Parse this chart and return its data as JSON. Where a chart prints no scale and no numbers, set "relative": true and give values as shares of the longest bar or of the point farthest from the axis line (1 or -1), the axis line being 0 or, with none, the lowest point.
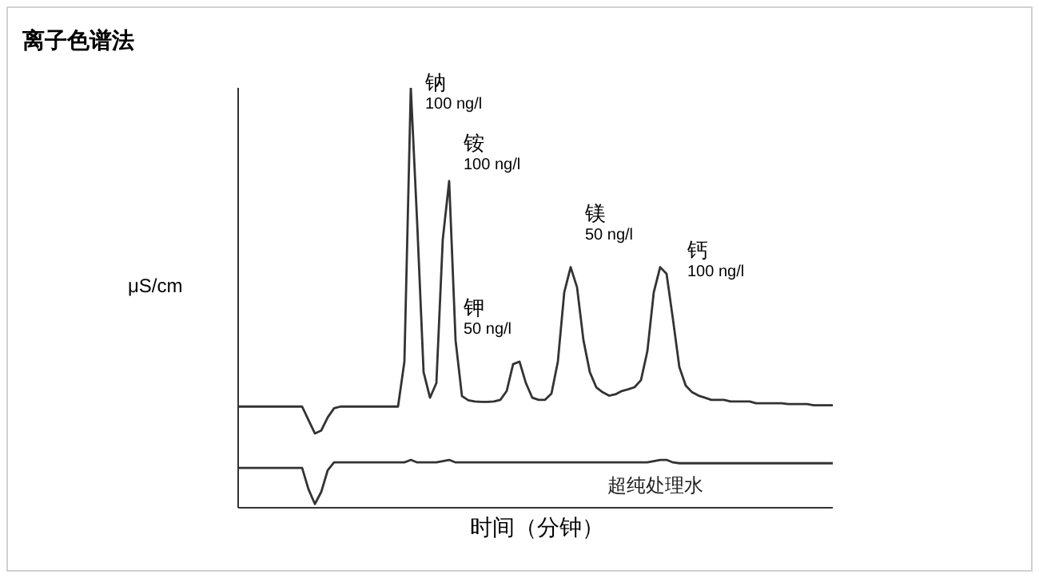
{
  "chart_data": {
    "type": "line",
    "title": "离子色谱法",
    "xlabel": "时间（分钟）",
    "ylabel": "μS/cm",
    "relative": true,
    "categories": [
      null,
      null,
      null,
      null,
      null,
      null,
      null,
      null,
      null,
      null,
      null,
      null,
      null,
      null,
      null,
      null,
      null,
      null,
      null,
      null,
      null,
      null,
      null,
      null,
      null,
      null,
      null,
      null,
      null,
      null,
      null,
      null,
      null,
      null,
      null,
      null,
      null,
      null,
      null,
      null,
      null,
      null,
      null,
      null,
      null,
      null,
      null,
      null,
      null,
      null,
      null,
      null,
      null,
      null,
      null,
      null,
      null,
      null,
      null,
      null,
      null,
      null,
      null,
      null,
      null,
      null,
      null,
      null,
      null,
      null,
      null,
      null,
      null,
      null,
      null,
      null,
      null,
      null,
      null,
      null,
      null,
      null,
      null,
      null,
      null,
      null,
      null,
      null,
      null,
      null,
      null,
      null,
      null,
      null
    ],
    "series": [
      {
        "color": "#333333",
        "values": [
          0.241,
          0.241,
          0.241,
          0.241,
          0.241,
          0.241,
          0.241,
          0.241,
          0.241,
          0.241,
          0.241,
          0.209,
          0.177,
          0.184,
          0.215,
          0.237,
          0.241,
          0.241,
          0.241,
          0.241,
          0.241,
          0.241,
          0.241,
          0.241,
          0.241,
          0.241,
          0.348,
          1,
          0.677,
          0.323,
          0.262,
          0.297,
          0.639,
          0.778,
          0.399,
          0.266,
          0.256,
          0.253,
          0.252,
          0.252,
          0.253,
          0.257,
          0.278,
          0.342,
          0.348,
          0.297,
          0.262,
          0.257,
          0.257,
          0.272,
          0.348,
          0.513,
          0.573,
          0.525,
          0.399,
          0.323,
          0.287,
          0.275,
          0.267,
          0.27,
          0.278,
          0.282,
          0.287,
          0.304,
          0.373,
          0.513,
          0.573,
          0.557,
          0.449,
          0.335,
          0.291,
          0.275,
          0.267,
          0.262,
          0.257,
          0.257,
          0.257,
          0.253,
          0.253,
          0.253,
          0.253,
          0.249,
          0.249,
          0.249,
          0.249,
          0.249,
          0.247,
          0.247,
          0.247,
          0.247,
          0.244,
          0.244,
          0.244,
          0.244
        ]
      },
      {
        "name": "超纯处理水",
        "color": "#333333",
        "values": [
          0.095,
          0.095,
          0.095,
          0.095,
          0.095,
          0.095,
          0.095,
          0.095,
          0.095,
          0.095,
          0.095,
          0.044,
          0.009,
          0.038,
          0.089,
          0.108,
          0.108,
          0.108,
          0.108,
          0.108,
          0.108,
          0.108,
          0.108,
          0.108,
          0.108,
          0.108,
          0.108,
          0.114,
          0.108,
          0.108,
          0.108,
          0.108,
          0.111,
          0.114,
          0.108,
          0.108,
          0.108,
          0.108,
          0.108,
          0.108,
          0.108,
          0.108,
          0.108,
          0.108,
          0.108,
          0.108,
          0.108,
          0.108,
          0.108,
          0.108,
          0.108,
          0.108,
          0.108,
          0.108,
          0.108,
          0.108,
          0.108,
          0.108,
          0.108,
          0.108,
          0.108,
          0.108,
          0.108,
          0.108,
          0.108,
          0.111,
          0.114,
          0.114,
          0.108,
          0.106,
          0.106,
          0.106,
          0.106,
          0.106,
          0.106,
          0.106,
          0.106,
          0.106,
          0.106,
          0.106,
          0.106,
          0.106,
          0.106,
          0.106,
          0.106,
          0.106,
          0.106,
          0.106,
          0.106,
          0.106,
          0.106,
          0.106,
          0.106,
          0.106
        ]
      }
    ],
    "annotations": [
      "钠\n100 ng/l",
      "铵\n100 ng/l",
      "钾\n50 ng/l",
      "镁\n50 ng/l",
      "钙\n100 ng/l"
    ]
  }
}
